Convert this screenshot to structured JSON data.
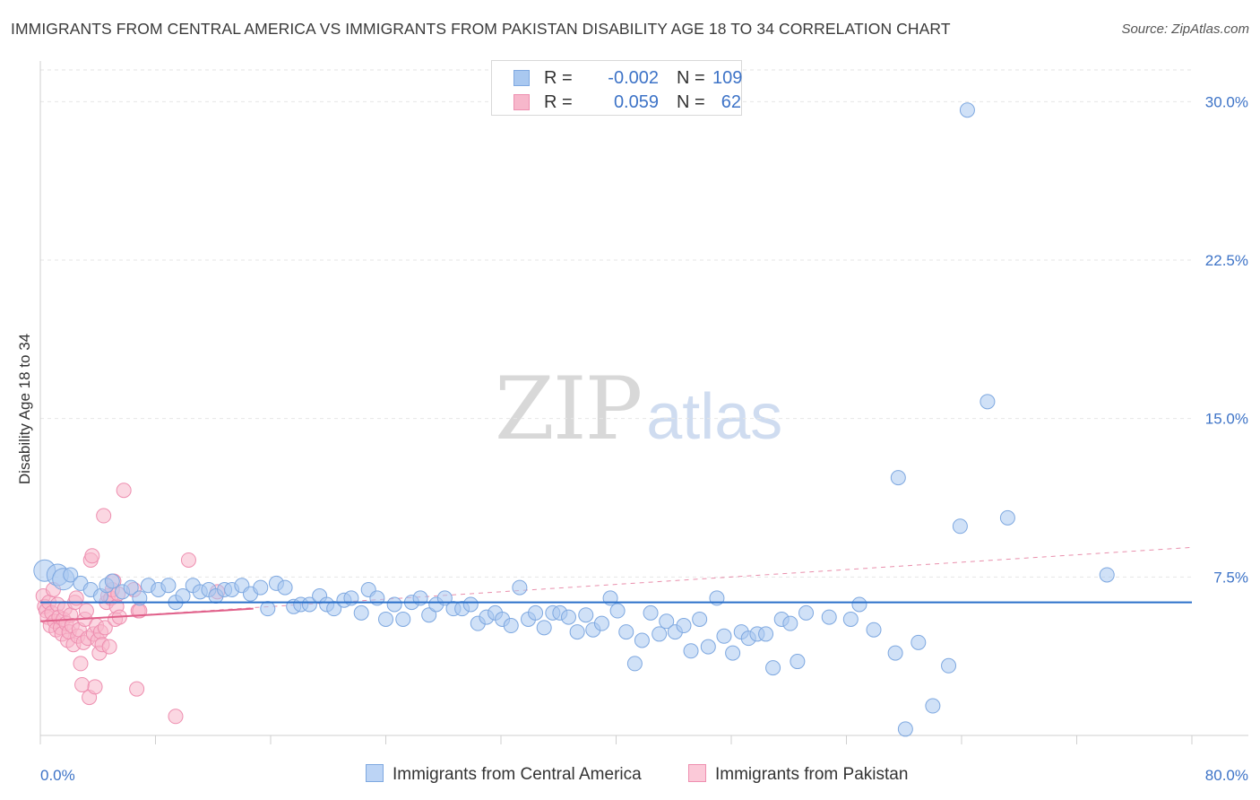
{
  "title": "IMMIGRANTS FROM CENTRAL AMERICA VS IMMIGRANTS FROM PAKISTAN DISABILITY AGE 18 TO 34 CORRELATION CHART",
  "source": "Source: ZipAtlas.com",
  "watermark": {
    "zip": "ZIP",
    "atlas": "atlas"
  },
  "colors": {
    "blue": "#a9c8f0",
    "blue_edge": "#7ea8e0",
    "blue_line": "#2a6fc9",
    "pink": "#f7b7cb",
    "pink_edge": "#ee8fb0",
    "pink_line": "#e0608a",
    "axis_text": "#3d73c7"
  },
  "legend": [
    {
      "label": "R =",
      "r": "-0.002",
      "n_label": "N =",
      "n": "109"
    },
    {
      "label": "R =",
      "r": "0.059",
      "n_label": "N =",
      "n": "62"
    }
  ],
  "chart_data": {
    "type": "scatter",
    "title": "IMMIGRANTS FROM CENTRAL AMERICA VS IMMIGRANTS FROM PAKISTAN DISABILITY AGE 18 TO 34 CORRELATION CHART",
    "xlabel": "",
    "ylabel": "Disability Age 18 to 34",
    "xlim": [
      0,
      80
    ],
    "ylim": [
      0,
      31.5
    ],
    "x_tick_labels": [
      "0.0%",
      "80.0%"
    ],
    "y_ticks": [
      7.5,
      15.0,
      22.5,
      30.0
    ],
    "y_tick_labels": [
      "7.5%",
      "15.0%",
      "22.5%",
      "30.0%"
    ],
    "grid": true,
    "series": [
      {
        "name": "Immigrants from Central America",
        "r": -0.002,
        "n": 109,
        "trend": {
          "x": [
            0,
            80
          ],
          "y": [
            6.3,
            6.3
          ]
        },
        "points": [
          [
            0.3,
            7.8
          ],
          [
            1.2,
            7.6
          ],
          [
            1.6,
            7.4
          ],
          [
            2.1,
            7.6
          ],
          [
            2.8,
            7.2
          ],
          [
            3.5,
            6.9
          ],
          [
            4.2,
            6.6
          ],
          [
            4.6,
            7.1
          ],
          [
            5.0,
            7.3
          ],
          [
            5.7,
            6.8
          ],
          [
            6.3,
            7.0
          ],
          [
            6.9,
            6.5
          ],
          [
            7.5,
            7.1
          ],
          [
            8.2,
            6.9
          ],
          [
            8.9,
            7.1
          ],
          [
            9.4,
            6.3
          ],
          [
            9.9,
            6.6
          ],
          [
            10.6,
            7.1
          ],
          [
            11.1,
            6.8
          ],
          [
            11.7,
            6.9
          ],
          [
            12.2,
            6.6
          ],
          [
            12.8,
            6.9
          ],
          [
            13.3,
            6.9
          ],
          [
            14.0,
            7.1
          ],
          [
            14.6,
            6.7
          ],
          [
            15.3,
            7.0
          ],
          [
            15.8,
            6.0
          ],
          [
            16.4,
            7.2
          ],
          [
            17.0,
            7.0
          ],
          [
            17.6,
            6.1
          ],
          [
            18.1,
            6.2
          ],
          [
            18.7,
            6.2
          ],
          [
            19.4,
            6.6
          ],
          [
            19.9,
            6.2
          ],
          [
            20.4,
            6.0
          ],
          [
            21.1,
            6.4
          ],
          [
            21.6,
            6.5
          ],
          [
            22.3,
            5.8
          ],
          [
            22.8,
            6.9
          ],
          [
            23.4,
            6.5
          ],
          [
            24.0,
            5.5
          ],
          [
            24.6,
            6.2
          ],
          [
            25.2,
            5.5
          ],
          [
            25.8,
            6.3
          ],
          [
            26.4,
            6.5
          ],
          [
            27.0,
            5.7
          ],
          [
            27.5,
            6.2
          ],
          [
            28.1,
            6.5
          ],
          [
            28.7,
            6.0
          ],
          [
            29.3,
            6.0
          ],
          [
            29.9,
            6.2
          ],
          [
            30.4,
            5.3
          ],
          [
            31.0,
            5.6
          ],
          [
            31.6,
            5.8
          ],
          [
            32.1,
            5.5
          ],
          [
            32.7,
            5.2
          ],
          [
            33.3,
            7.0
          ],
          [
            33.9,
            5.5
          ],
          [
            34.4,
            5.8
          ],
          [
            35.0,
            5.1
          ],
          [
            35.6,
            5.8
          ],
          [
            36.1,
            5.8
          ],
          [
            36.7,
            5.6
          ],
          [
            37.3,
            4.9
          ],
          [
            37.9,
            5.7
          ],
          [
            38.4,
            5.0
          ],
          [
            39.0,
            5.3
          ],
          [
            39.6,
            6.5
          ],
          [
            40.1,
            5.9
          ],
          [
            40.7,
            4.9
          ],
          [
            41.3,
            3.4
          ],
          [
            41.8,
            4.5
          ],
          [
            42.4,
            5.8
          ],
          [
            43.0,
            4.8
          ],
          [
            43.5,
            5.4
          ],
          [
            44.1,
            4.9
          ],
          [
            44.7,
            5.2
          ],
          [
            45.2,
            4.0
          ],
          [
            45.8,
            5.5
          ],
          [
            46.4,
            4.2
          ],
          [
            47.0,
            6.5
          ],
          [
            47.5,
            4.7
          ],
          [
            48.1,
            3.9
          ],
          [
            48.7,
            4.9
          ],
          [
            49.2,
            4.6
          ],
          [
            49.8,
            4.8
          ],
          [
            50.4,
            4.8
          ],
          [
            50.9,
            3.2
          ],
          [
            51.5,
            5.5
          ],
          [
            52.1,
            5.3
          ],
          [
            52.6,
            3.5
          ],
          [
            53.2,
            5.8
          ],
          [
            54.8,
            5.6
          ],
          [
            56.3,
            5.5
          ],
          [
            56.9,
            6.2
          ],
          [
            57.9,
            5.0
          ],
          [
            59.4,
            3.9
          ],
          [
            59.6,
            12.2
          ],
          [
            60.1,
            0.3
          ],
          [
            61.0,
            4.4
          ],
          [
            62.0,
            1.4
          ],
          [
            63.1,
            3.3
          ],
          [
            63.9,
            9.9
          ],
          [
            64.4,
            29.6
          ],
          [
            65.8,
            15.8
          ],
          [
            67.2,
            10.3
          ],
          [
            74.1,
            7.6
          ]
        ]
      },
      {
        "name": "Immigrants from Pakistan",
        "r": 0.059,
        "n": 62,
        "trend": {
          "x": [
            0,
            14.8
          ],
          "y": [
            5.4,
            6.0
          ]
        },
        "trend_dashed": {
          "x": [
            0,
            80
          ],
          "y": [
            5.4,
            8.9
          ]
        },
        "points": [
          [
            0.2,
            6.6
          ],
          [
            0.3,
            6.1
          ],
          [
            0.4,
            5.9
          ],
          [
            0.5,
            5.6
          ],
          [
            0.6,
            6.3
          ],
          [
            0.7,
            5.2
          ],
          [
            0.8,
            5.8
          ],
          [
            0.9,
            6.9
          ],
          [
            1.0,
            5.4
          ],
          [
            1.1,
            5.0
          ],
          [
            1.2,
            6.2
          ],
          [
            1.3,
            5.6
          ],
          [
            1.4,
            5.1
          ],
          [
            1.5,
            4.8
          ],
          [
            1.6,
            5.5
          ],
          [
            1.7,
            6.0
          ],
          [
            1.8,
            5.3
          ],
          [
            1.9,
            4.5
          ],
          [
            2.0,
            4.9
          ],
          [
            2.1,
            5.7
          ],
          [
            2.2,
            5.2
          ],
          [
            2.3,
            4.3
          ],
          [
            2.4,
            6.3
          ],
          [
            2.5,
            6.5
          ],
          [
            2.6,
            4.7
          ],
          [
            2.7,
            5.0
          ],
          [
            2.8,
            3.4
          ],
          [
            2.9,
            2.4
          ],
          [
            3.0,
            4.4
          ],
          [
            3.1,
            5.5
          ],
          [
            3.2,
            5.9
          ],
          [
            3.3,
            4.6
          ],
          [
            3.4,
            1.8
          ],
          [
            3.5,
            8.3
          ],
          [
            3.6,
            8.5
          ],
          [
            3.7,
            4.8
          ],
          [
            3.8,
            2.3
          ],
          [
            3.9,
            5.2
          ],
          [
            4.0,
            4.5
          ],
          [
            4.1,
            3.9
          ],
          [
            4.2,
            4.9
          ],
          [
            4.3,
            4.3
          ],
          [
            4.4,
            10.4
          ],
          [
            4.5,
            5.1
          ],
          [
            4.6,
            6.3
          ],
          [
            4.7,
            6.6
          ],
          [
            4.8,
            4.2
          ],
          [
            4.9,
            6.5
          ],
          [
            5.0,
            6.9
          ],
          [
            5.1,
            7.3
          ],
          [
            5.2,
            5.5
          ],
          [
            5.3,
            6.1
          ],
          [
            5.4,
            6.7
          ],
          [
            5.5,
            5.6
          ],
          [
            5.8,
            11.6
          ],
          [
            6.5,
            6.9
          ],
          [
            6.7,
            2.2
          ],
          [
            6.8,
            5.9
          ],
          [
            6.9,
            5.9
          ],
          [
            9.4,
            0.9
          ],
          [
            10.3,
            8.3
          ],
          [
            12.3,
            6.8
          ]
        ]
      }
    ]
  },
  "bottom_legend": [
    {
      "label": "Immigrants from Central America"
    },
    {
      "label": "Immigrants from Pakistan"
    }
  ]
}
